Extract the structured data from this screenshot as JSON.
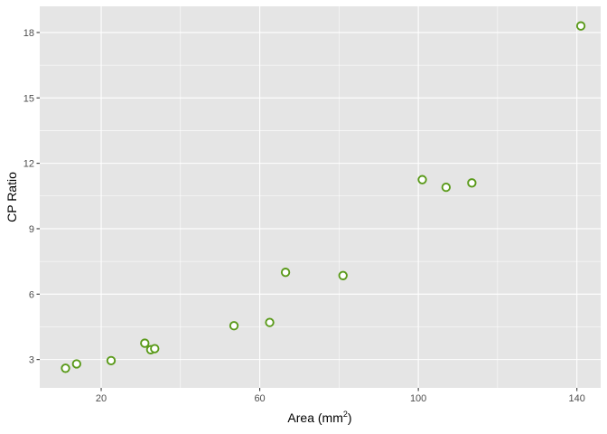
{
  "chart_data": {
    "type": "scatter",
    "xlabel": "Area (mm",
    "xlabel_superscript": "2",
    "xlabel_suffix": ")",
    "ylabel": "CP Ratio",
    "xlim": [
      4.5,
      146
    ],
    "ylim": [
      1.7,
      19.2
    ],
    "x_ticks": [
      20,
      60,
      100,
      140
    ],
    "x_tick_labels": [
      "20",
      "60",
      "100",
      "140"
    ],
    "y_ticks": [
      3,
      6,
      9,
      12,
      15,
      18
    ],
    "y_tick_labels": [
      "3",
      "6",
      "9",
      "12",
      "15",
      "18"
    ],
    "grid": true,
    "legend": "none",
    "colors": {
      "panel_background": "#e5e5e5",
      "gridline": "#ffffff",
      "point_stroke": "#5a9a1a",
      "point_fill": "#ffffff"
    },
    "series": [
      {
        "x": [
          11,
          13.8,
          22.5,
          31,
          32.5,
          33.5,
          53.5,
          62.5,
          66.5,
          81,
          101,
          107,
          113.5,
          141
        ],
        "y": [
          2.6,
          2.8,
          2.95,
          3.75,
          3.45,
          3.5,
          4.55,
          4.7,
          7.0,
          6.85,
          11.25,
          10.9,
          11.1,
          18.3
        ]
      }
    ]
  }
}
